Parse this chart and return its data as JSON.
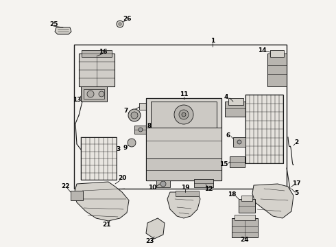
{
  "bg_color": "#f0ede8",
  "line_color": "#2a2a2a",
  "fig_width": 4.9,
  "fig_height": 3.6,
  "dpi": 100,
  "image_b64": ""
}
